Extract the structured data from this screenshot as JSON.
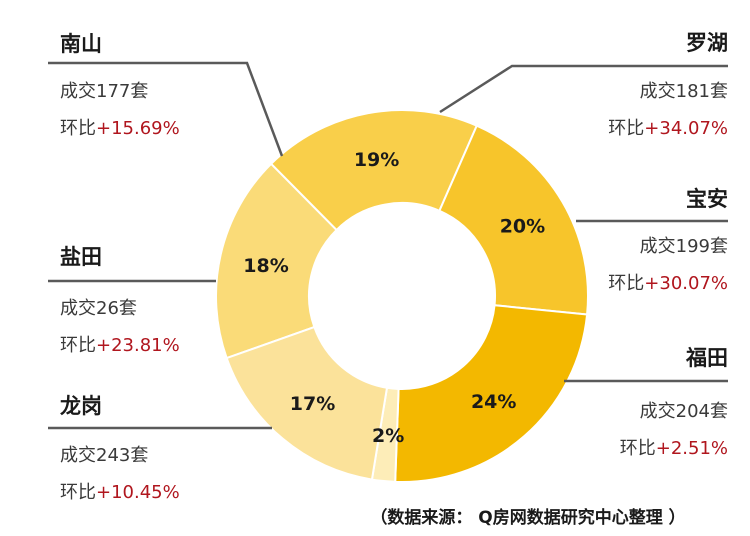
{
  "chart_data": {
    "type": "pie",
    "categories": [
      "罗湖",
      "宝安",
      "福田",
      "龙岗",
      "盐田",
      "南山"
    ],
    "values": [
      18,
      19,
      20,
      24,
      2,
      17
    ],
    "deals": [
      "成交181套",
      "成交199套",
      "成交204套",
      "成交243套",
      "成交26套",
      "成交177套"
    ],
    "change_prefix": "环比",
    "changes": [
      "+34.07%",
      "+30.07%",
      "+2.51%",
      "+10.45%",
      "+23.81%",
      "+15.69%"
    ],
    "percent_labels": [
      "18%",
      "19%",
      "20%",
      "24%",
      "2%",
      "17%"
    ],
    "colors": [
      "#FADB78",
      "#F9CF4A",
      "#F7C52B",
      "#F3B800",
      "#FDEDB8",
      "#FBE29A"
    ],
    "source": "（数据来源： Q房网数据研究中心整理 ）"
  }
}
